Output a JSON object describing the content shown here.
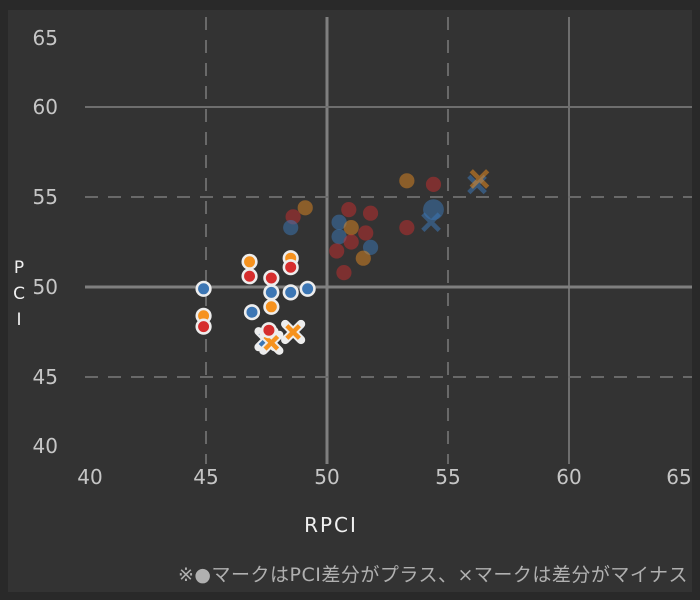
{
  "page": {
    "background": "#292929",
    "canvas_background": "#333333"
  },
  "colors": {
    "blue": "#3c76b4",
    "orange": "#f6921e",
    "red": "#d62d2d",
    "marker_outline": "#ededed",
    "grid_solid_major": "#7f7f7f",
    "grid_solid_minor": "#6e6e6e",
    "grid_dashed": "#696969",
    "tick_label": "#c6c6c6",
    "axis_title": "#f0f0f0",
    "note_text": "#b0b0b0"
  },
  "chart_data": {
    "type": "scatter",
    "title": "",
    "xlabel": "RPCI",
    "ylabel": "PCI",
    "xlim": [
      40,
      65
    ],
    "ylim": [
      40,
      65
    ],
    "xticks": [
      40,
      45,
      50,
      55,
      60,
      65
    ],
    "yticks": [
      40,
      45,
      50,
      55,
      60,
      65
    ],
    "grid": {
      "x_dashed": [
        45,
        55
      ],
      "x_solid": [
        50,
        60
      ],
      "y_dashed": [
        45,
        55
      ],
      "y_solid": [
        50,
        60
      ],
      "emphasized": [
        50
      ]
    },
    "note": "※●マークはPCI差分がプラス、×マークは差分がマイナス",
    "marker_meaning": {
      "circle": "PCI差分がプラス",
      "x": "差分がマイナス"
    },
    "points_muted": [
      {
        "x": 49.1,
        "y": 54.4,
        "color": "orange",
        "marker": "circle"
      },
      {
        "x": 48.6,
        "y": 53.9,
        "color": "red",
        "marker": "circle"
      },
      {
        "x": 48.5,
        "y": 53.3,
        "color": "blue",
        "marker": "circle"
      },
      {
        "x": 50.9,
        "y": 54.3,
        "color": "red",
        "marker": "circle"
      },
      {
        "x": 51.8,
        "y": 54.1,
        "color": "red",
        "marker": "circle"
      },
      {
        "x": 50.5,
        "y": 53.6,
        "color": "blue",
        "marker": "circle"
      },
      {
        "x": 51.0,
        "y": 53.3,
        "color": "orange",
        "marker": "circle"
      },
      {
        "x": 51.6,
        "y": 53.0,
        "color": "red",
        "marker": "circle"
      },
      {
        "x": 50.5,
        "y": 52.8,
        "color": "blue",
        "marker": "circle"
      },
      {
        "x": 51.0,
        "y": 52.5,
        "color": "red",
        "marker": "circle"
      },
      {
        "x": 51.8,
        "y": 52.2,
        "color": "blue",
        "marker": "circle"
      },
      {
        "x": 50.4,
        "y": 52.0,
        "color": "red",
        "marker": "circle"
      },
      {
        "x": 51.5,
        "y": 51.6,
        "color": "orange",
        "marker": "circle"
      },
      {
        "x": 50.7,
        "y": 50.8,
        "color": "red",
        "marker": "circle"
      },
      {
        "x": 53.3,
        "y": 55.9,
        "color": "orange",
        "marker": "circle"
      },
      {
        "x": 54.4,
        "y": 55.7,
        "color": "red",
        "marker": "circle"
      },
      {
        "x": 54.4,
        "y": 54.3,
        "color": "blue",
        "marker": "circle",
        "size": "large"
      },
      {
        "x": 53.3,
        "y": 53.3,
        "color": "red",
        "marker": "circle"
      },
      {
        "x": 54.3,
        "y": 53.6,
        "color": "blue",
        "marker": "x"
      },
      {
        "x": 56.2,
        "y": 55.7,
        "color": "blue",
        "marker": "x"
      },
      {
        "x": 56.3,
        "y": 56.0,
        "color": "orange",
        "marker": "x"
      }
    ],
    "points_highlighted": [
      {
        "x": 44.9,
        "y": 49.9,
        "color": "blue",
        "marker": "circle"
      },
      {
        "x": 44.9,
        "y": 48.4,
        "color": "orange",
        "marker": "circle"
      },
      {
        "x": 44.9,
        "y": 47.8,
        "color": "red",
        "marker": "circle"
      },
      {
        "x": 46.8,
        "y": 51.4,
        "color": "orange",
        "marker": "circle"
      },
      {
        "x": 46.8,
        "y": 50.6,
        "color": "red",
        "marker": "circle"
      },
      {
        "x": 48.5,
        "y": 51.6,
        "color": "orange",
        "marker": "circle"
      },
      {
        "x": 48.5,
        "y": 51.1,
        "color": "red",
        "marker": "circle"
      },
      {
        "x": 47.7,
        "y": 50.5,
        "color": "red",
        "marker": "circle"
      },
      {
        "x": 47.7,
        "y": 49.7,
        "color": "blue",
        "marker": "circle"
      },
      {
        "x": 48.5,
        "y": 49.7,
        "color": "blue",
        "marker": "circle"
      },
      {
        "x": 49.2,
        "y": 49.9,
        "color": "blue",
        "marker": "circle"
      },
      {
        "x": 47.7,
        "y": 48.9,
        "color": "orange",
        "marker": "circle"
      },
      {
        "x": 46.9,
        "y": 48.6,
        "color": "blue",
        "marker": "circle"
      },
      {
        "x": 47.5,
        "y": 47.1,
        "color": "blue",
        "marker": "x"
      },
      {
        "x": 47.7,
        "y": 46.9,
        "color": "orange",
        "marker": "x"
      },
      {
        "x": 47.6,
        "y": 47.6,
        "color": "red",
        "marker": "circle"
      },
      {
        "x": 48.6,
        "y": 47.5,
        "color": "orange",
        "marker": "x"
      }
    ]
  }
}
